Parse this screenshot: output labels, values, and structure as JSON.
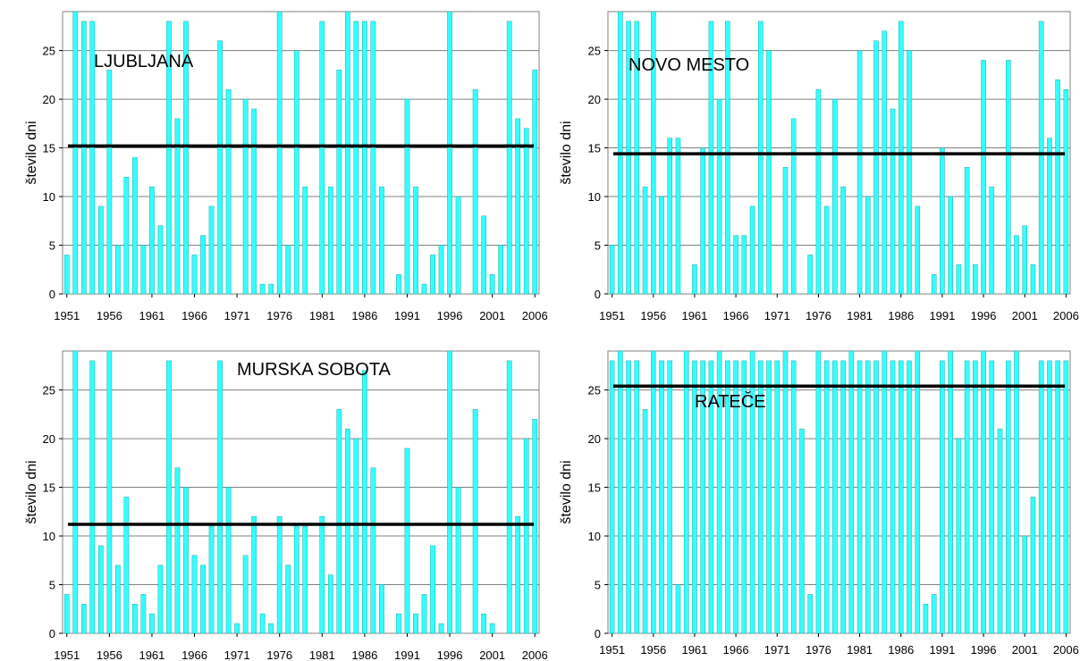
{
  "colors": {
    "bar": "#33ffff",
    "bar_edge": "#22aaaa",
    "mean_line": "#000000",
    "grid": "#808080"
  },
  "chart_data": [
    {
      "type": "bar",
      "title": "LJUBLJANA",
      "ylabel": "število dni",
      "ylim": [
        0,
        29
      ],
      "yticks": [
        0,
        5,
        10,
        15,
        20,
        25
      ],
      "xticks": [
        "1951",
        "1956",
        "1961",
        "1966",
        "1971",
        "1976",
        "1981",
        "1986",
        "1991",
        "1996",
        "2001",
        "2006"
      ],
      "x_start": 1951,
      "values": [
        4,
        29,
        28,
        28,
        9,
        23,
        5,
        12,
        14,
        5,
        11,
        7,
        28,
        18,
        28,
        4,
        6,
        9,
        26,
        21,
        0,
        20,
        19,
        1,
        1,
        29,
        5,
        25,
        11,
        0,
        28,
        11,
        23,
        29,
        28,
        28,
        28,
        11,
        0,
        2,
        20,
        11,
        1,
        4,
        5,
        29,
        10,
        0,
        21,
        8,
        2,
        5,
        28,
        18,
        17,
        23
      ],
      "mean": 15.2,
      "grid": true
    },
    {
      "type": "bar",
      "title": "NOVO MESTO",
      "ylabel": "število dni",
      "ylim": [
        0,
        29
      ],
      "yticks": [
        0,
        5,
        10,
        15,
        20,
        25
      ],
      "xticks": [
        "1951",
        "1956",
        "1961",
        "1966",
        "1971",
        "1976",
        "1981",
        "1986",
        "1991",
        "1996",
        "2001",
        "2006"
      ],
      "x_start": 1951,
      "values": [
        5,
        29,
        28,
        28,
        11,
        29,
        10,
        16,
        16,
        0,
        3,
        15,
        28,
        20,
        28,
        6,
        6,
        9,
        28,
        25,
        0,
        13,
        18,
        0,
        4,
        21,
        9,
        20,
        11,
        0,
        25,
        10,
        26,
        27,
        19,
        28,
        25,
        9,
        0,
        2,
        15,
        10,
        3,
        13,
        3,
        24,
        11,
        0,
        24,
        6,
        7,
        3,
        28,
        16,
        22,
        21
      ],
      "mean": 14.4,
      "grid": true
    },
    {
      "type": "bar",
      "title": "MURSKA SOBOTA",
      "ylabel": "število dni",
      "ylim": [
        0,
        29
      ],
      "yticks": [
        0,
        5,
        10,
        15,
        20,
        25
      ],
      "xticks": [
        "1951",
        "1956",
        "1961",
        "1966",
        "1971",
        "1976",
        "1981",
        "1986",
        "1991",
        "1996",
        "2001",
        "2006"
      ],
      "x_start": 1951,
      "values": [
        4,
        29,
        3,
        28,
        9,
        29,
        7,
        14,
        3,
        4,
        2,
        7,
        28,
        17,
        15,
        8,
        7,
        11,
        28,
        15,
        1,
        8,
        12,
        2,
        1,
        12,
        7,
        11,
        11,
        0,
        12,
        6,
        23,
        21,
        20,
        27,
        17,
        5,
        0,
        2,
        19,
        2,
        4,
        9,
        1,
        29,
        15,
        0,
        23,
        2,
        1,
        0,
        28,
        12,
        20,
        22
      ],
      "mean": 11.2,
      "grid": true
    },
    {
      "type": "bar",
      "title": "RATEČE",
      "ylabel": "število dni",
      "ylim": [
        0,
        29
      ],
      "yticks": [
        0,
        5,
        10,
        15,
        20,
        25
      ],
      "xticks": [
        "1951",
        "1956",
        "1961",
        "1966",
        "1971",
        "1976",
        "1981",
        "1986",
        "1991",
        "1996",
        "2001",
        "2006"
      ],
      "x_start": 1951,
      "values": [
        28,
        29,
        28,
        28,
        23,
        29,
        28,
        28,
        5,
        29,
        28,
        28,
        28,
        29,
        28,
        28,
        28,
        29,
        28,
        28,
        28,
        29,
        28,
        21,
        4,
        29,
        28,
        28,
        28,
        29,
        28,
        28,
        28,
        29,
        28,
        28,
        28,
        29,
        3,
        4,
        28,
        29,
        20,
        28,
        28,
        29,
        28,
        21,
        28,
        29,
        10,
        14,
        28,
        28,
        28,
        28
      ],
      "mean": 25.4,
      "grid": true
    }
  ]
}
